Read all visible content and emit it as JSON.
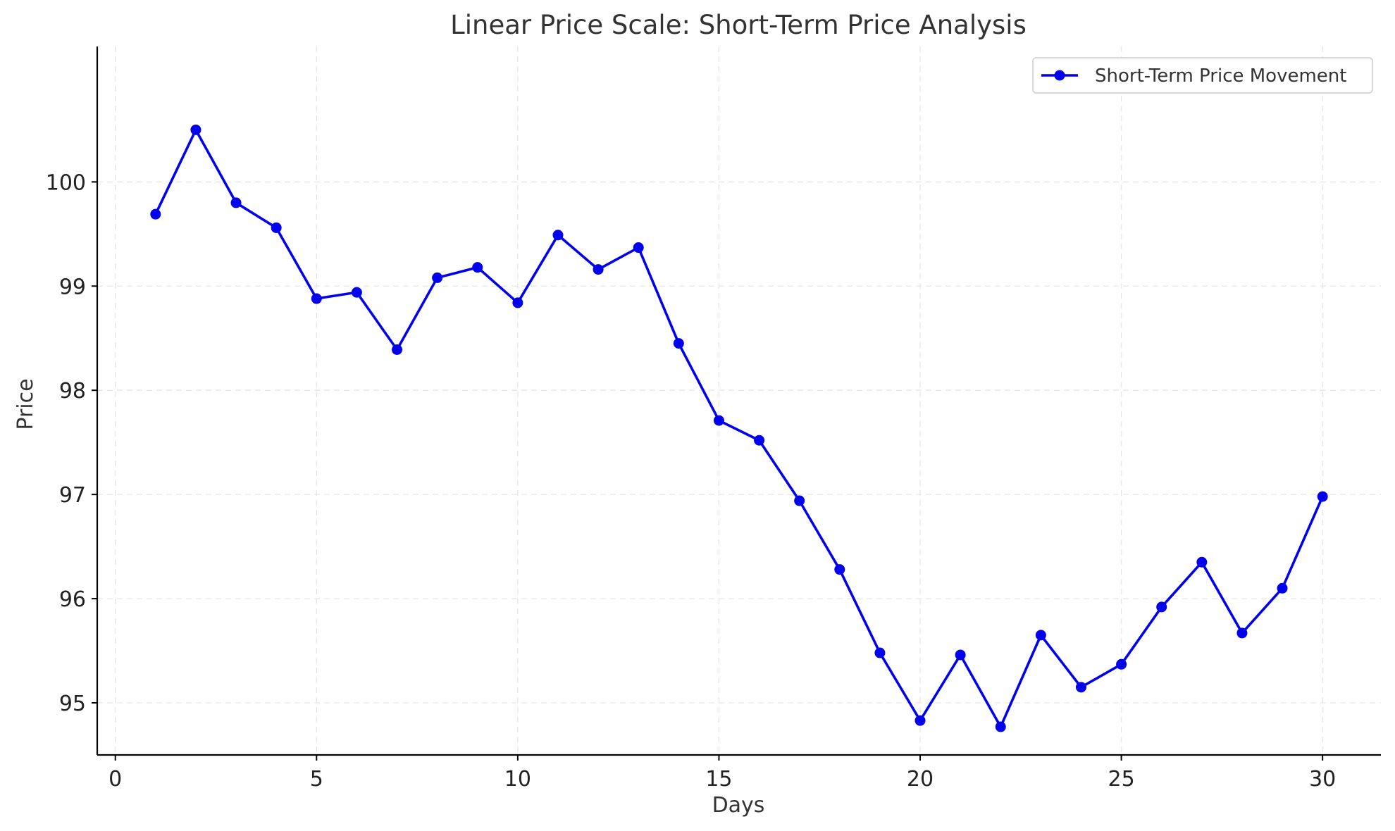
{
  "chart_data": {
    "type": "line",
    "title": "Linear Price Scale: Short-Term Price Analysis",
    "xlabel": "Days",
    "ylabel": "Price",
    "xlim": [
      -0.45,
      31.45
    ],
    "ylim": [
      94.5,
      101.3
    ],
    "xticks": [
      0,
      5,
      10,
      15,
      20,
      25,
      30
    ],
    "yticks": [
      95,
      96,
      97,
      98,
      99,
      100
    ],
    "grid": true,
    "legend_position": "top-right",
    "series": [
      {
        "name": "Short-Term Price Movement",
        "color": "#0000ee",
        "marker": "circle",
        "x": [
          1,
          2,
          3,
          4,
          5,
          6,
          7,
          8,
          9,
          10,
          11,
          12,
          13,
          14,
          15,
          16,
          17,
          18,
          19,
          20,
          21,
          22,
          23,
          24,
          25,
          26,
          27,
          28,
          29,
          30
        ],
        "values": [
          99.69,
          100.5,
          99.8,
          99.56,
          98.88,
          98.94,
          98.39,
          99.08,
          99.18,
          98.84,
          99.49,
          99.16,
          99.37,
          98.45,
          97.71,
          97.52,
          96.94,
          96.28,
          95.48,
          94.83,
          95.46,
          94.77,
          95.65,
          95.15,
          95.37,
          95.92,
          96.35,
          95.67,
          96.1,
          96.98
        ]
      }
    ]
  }
}
